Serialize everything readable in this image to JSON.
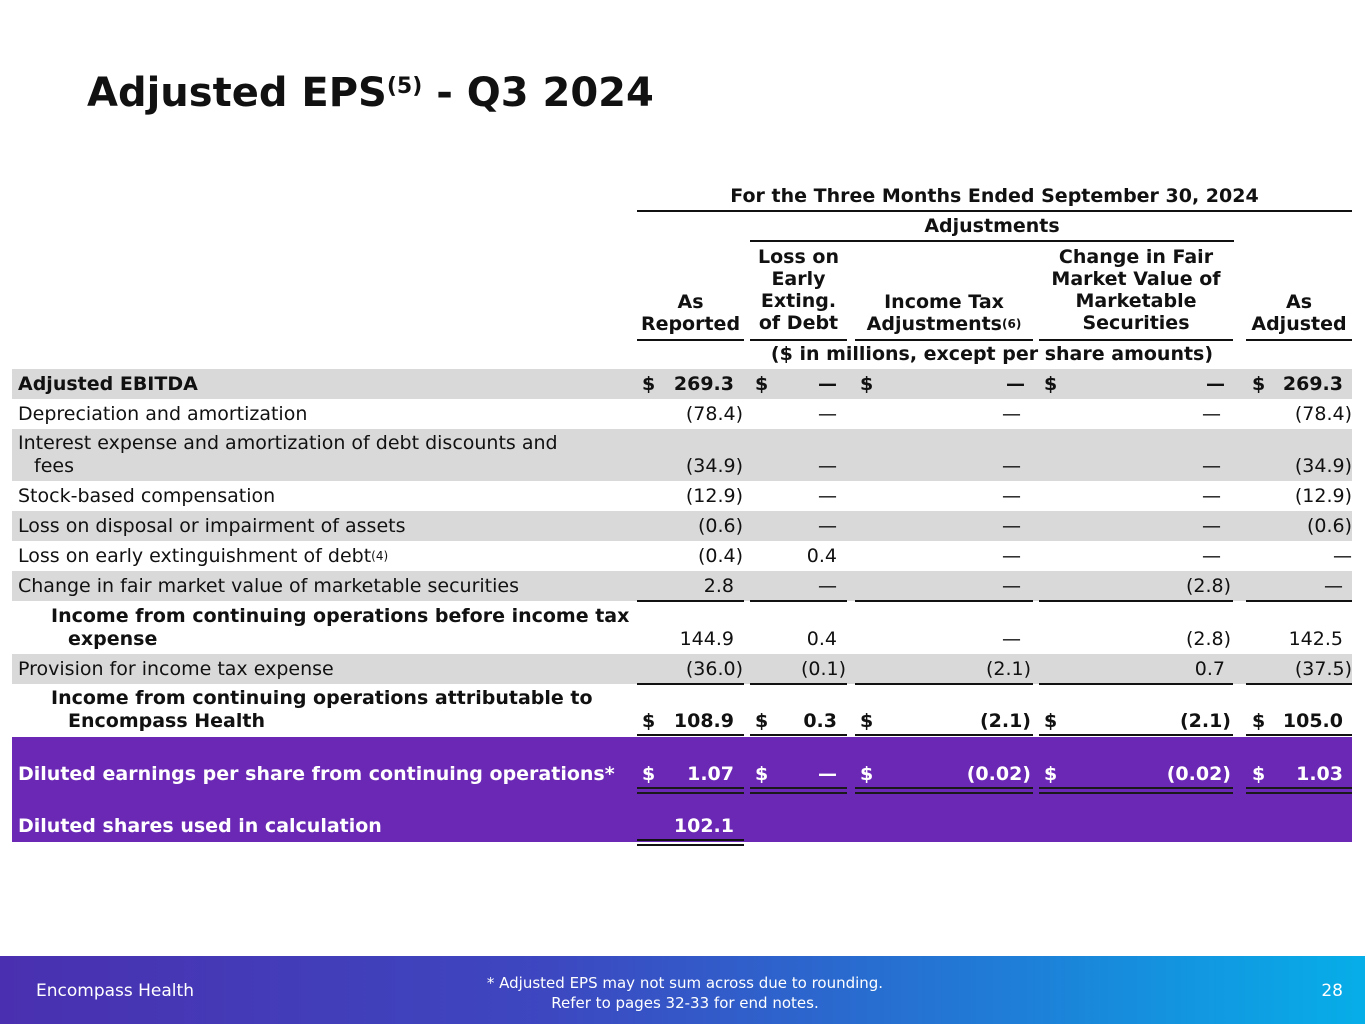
{
  "title": {
    "main": "Adjusted EPS",
    "sup": "(5)",
    "suffix": " - Q3 2024"
  },
  "table": {
    "period_header": "For the Three Months Ended September 30, 2024",
    "adjustments_header": "Adjustments",
    "columns": [
      {
        "line1": "As",
        "line2": "Reported"
      },
      {
        "line1": "Loss on",
        "line2": "Early",
        "line3": "Exting.",
        "line4": "of Debt"
      },
      {
        "line1": "Income Tax",
        "line2": "Adjustments",
        "sup": "(6)"
      },
      {
        "line1": "Change in Fair",
        "line2": "Market Value of",
        "line3": "Marketable",
        "line4": "Securities"
      },
      {
        "line1": "As",
        "line2": "Adjusted"
      }
    ],
    "units_note": "($ in millions, except per share amounts)",
    "currency": "$",
    "rows": [
      {
        "label": "Adjusted EBITDA",
        "values": [
          "269.3",
          "—",
          "—",
          "—",
          "269.3"
        ]
      },
      {
        "label": "Depreciation and amortization",
        "values": [
          "(78.4)",
          "—",
          "—",
          "—",
          "(78.4)"
        ]
      },
      {
        "label_line1": "Interest expense and amortization of debt discounts and",
        "label_line2": "fees",
        "values": [
          "(34.9)",
          "—",
          "—",
          "—",
          "(34.9)"
        ]
      },
      {
        "label": "Stock-based compensation",
        "values": [
          "(12.9)",
          "—",
          "—",
          "—",
          "(12.9)"
        ]
      },
      {
        "label": "Loss on disposal or impairment of assets",
        "values": [
          "(0.6)",
          "—",
          "—",
          "—",
          "(0.6)"
        ]
      },
      {
        "label": "Loss on early extinguishment of debt",
        "sup": "(4)",
        "values": [
          "(0.4)",
          "0.4",
          "—",
          "—",
          "—"
        ]
      },
      {
        "label": "Change in fair market value of marketable securities",
        "values": [
          "2.8",
          "—",
          "—",
          "(2.8)",
          "—"
        ]
      },
      {
        "label_line1": "Income from continuing operations before income tax",
        "label_line2": "expense",
        "values": [
          "144.9",
          "0.4",
          "—",
          "(2.8)",
          "142.5"
        ]
      },
      {
        "label": "Provision for income tax expense",
        "values": [
          "(36.0)",
          "(0.1)",
          "(2.1)",
          "0.7",
          "(37.5)"
        ]
      },
      {
        "label_line1": "Income from continuing operations attributable to",
        "label_line2": "Encompass Health",
        "values": [
          "108.9",
          "0.3",
          "(2.1)",
          "(2.1)",
          "105.0"
        ]
      },
      {
        "label": "Diluted earnings per share from continuing operations*",
        "values": [
          "1.07",
          "—",
          "(0.02)",
          "(0.02)",
          "1.03"
        ]
      },
      {
        "label": "Diluted shares used in calculation",
        "values": [
          "102.1"
        ]
      }
    ]
  },
  "footer": {
    "brand": "Encompass Health",
    "note_line1": "*  Adjusted EPS may not sum across due to rounding.",
    "note_line2": "Refer to pages 32-33 for end notes.",
    "page_number": "28"
  },
  "colors": {
    "highlight_band": "#6a28b4",
    "zebra_gray": "#d9d9d9",
    "footer_start": "#4a30b0",
    "footer_end": "#06aee8"
  }
}
